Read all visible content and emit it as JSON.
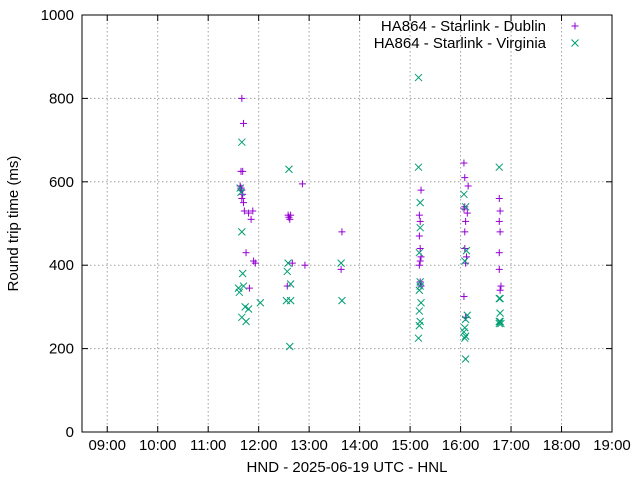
{
  "chart_data": {
    "type": "scatter",
    "title": "",
    "xlabel": "HND - 2025-06-19 UTC - HNL",
    "ylabel": "Round trip time (ms)",
    "x_unit": "UTC hour of 2025-06-19",
    "xlim": [
      "08:30",
      "19:00"
    ],
    "ylim": [
      0,
      1000
    ],
    "x_ticks": [
      "09:00",
      "10:00",
      "11:00",
      "12:00",
      "13:00",
      "14:00",
      "15:00",
      "16:00",
      "17:00",
      "18:00",
      "19:00"
    ],
    "y_ticks": [
      0,
      200,
      400,
      600,
      800,
      1000
    ],
    "grid": true,
    "legend_position": "top-right",
    "series": [
      {
        "name": "HA864 - Starlink - Dublin",
        "marker": "plus",
        "color": "#9400d3",
        "points": [
          [
            "11:40",
            800
          ],
          [
            "11:42",
            740
          ],
          [
            "11:39",
            625
          ],
          [
            "11:41",
            625
          ],
          [
            "11:38",
            590
          ],
          [
            "11:39",
            585
          ],
          [
            "11:40",
            580
          ],
          [
            "11:41",
            570
          ],
          [
            "11:40",
            560
          ],
          [
            "11:42",
            550
          ],
          [
            "11:43",
            530
          ],
          [
            "11:48",
            525
          ],
          [
            "11:53",
            530
          ],
          [
            "11:51",
            510
          ],
          [
            "11:45",
            430
          ],
          [
            "11:54",
            410
          ],
          [
            "11:56",
            405
          ],
          [
            "11:49",
            345
          ],
          [
            "12:35",
            520
          ],
          [
            "12:36",
            515
          ],
          [
            "12:37",
            510
          ],
          [
            "12:38",
            520
          ],
          [
            "12:40",
            405
          ],
          [
            "12:34",
            350
          ],
          [
            "12:52",
            595
          ],
          [
            "12:55",
            400
          ],
          [
            "13:39",
            480
          ],
          [
            "13:38",
            390
          ],
          [
            "15:11",
            520
          ],
          [
            "15:13",
            580
          ],
          [
            "15:12",
            505
          ],
          [
            "15:11",
            470
          ],
          [
            "15:12",
            440
          ],
          [
            "15:13",
            420
          ],
          [
            "15:12",
            410
          ],
          [
            "15:11",
            400
          ],
          [
            "15:12",
            360
          ],
          [
            "15:13",
            350
          ],
          [
            "16:04",
            645
          ],
          [
            "16:05",
            610
          ],
          [
            "16:09",
            590
          ],
          [
            "16:05",
            540
          ],
          [
            "16:04",
            535
          ],
          [
            "16:08",
            525
          ],
          [
            "16:06",
            505
          ],
          [
            "16:05",
            480
          ],
          [
            "16:05",
            440
          ],
          [
            "16:07",
            420
          ],
          [
            "16:06",
            405
          ],
          [
            "16:04",
            325
          ],
          [
            "16:06",
            275
          ],
          [
            "16:46",
            560
          ],
          [
            "16:47",
            530
          ],
          [
            "16:46",
            505
          ],
          [
            "16:47",
            480
          ],
          [
            "16:46",
            430
          ],
          [
            "16:46",
            390
          ],
          [
            "16:48",
            350
          ],
          [
            "16:47",
            340
          ]
        ]
      },
      {
        "name": "HA864 - Starlink - Virginia",
        "marker": "cross",
        "color": "#009e73",
        "points": [
          [
            "11:40",
            695
          ],
          [
            "11:38",
            585
          ],
          [
            "11:39",
            575
          ],
          [
            "11:40",
            480
          ],
          [
            "11:41",
            380
          ],
          [
            "11:42",
            350
          ],
          [
            "11:36",
            345
          ],
          [
            "11:37",
            335
          ],
          [
            "11:44",
            300
          ],
          [
            "11:48",
            295
          ],
          [
            "11:40",
            275
          ],
          [
            "11:45",
            265
          ],
          [
            "12:02",
            310
          ],
          [
            "12:36",
            630
          ],
          [
            "12:35",
            405
          ],
          [
            "12:34",
            385
          ],
          [
            "12:38",
            355
          ],
          [
            "12:33",
            315
          ],
          [
            "12:38",
            315
          ],
          [
            "12:37",
            205
          ],
          [
            "13:38",
            405
          ],
          [
            "13:39",
            315
          ],
          [
            "15:10",
            850
          ],
          [
            "15:10",
            635
          ],
          [
            "15:12",
            550
          ],
          [
            "15:12",
            490
          ],
          [
            "15:11",
            430
          ],
          [
            "15:12",
            360
          ],
          [
            "15:12",
            350
          ],
          [
            "15:11",
            340
          ],
          [
            "15:13",
            310
          ],
          [
            "15:11",
            290
          ],
          [
            "15:12",
            265
          ],
          [
            "15:11",
            255
          ],
          [
            "15:10",
            225
          ],
          [
            "16:04",
            570
          ],
          [
            "16:06",
            540
          ],
          [
            "16:07",
            435
          ],
          [
            "16:05",
            410
          ],
          [
            "16:08",
            280
          ],
          [
            "16:06",
            270
          ],
          [
            "16:05",
            250
          ],
          [
            "16:04",
            240
          ],
          [
            "16:06",
            230
          ],
          [
            "16:05",
            225
          ],
          [
            "16:06",
            175
          ],
          [
            "16:46",
            635
          ],
          [
            "16:47",
            320
          ],
          [
            "16:46",
            320
          ],
          [
            "16:47",
            285
          ],
          [
            "16:46",
            265
          ],
          [
            "16:47",
            265
          ],
          [
            "16:48",
            260
          ],
          [
            "16:46",
            260
          ]
        ]
      }
    ]
  }
}
